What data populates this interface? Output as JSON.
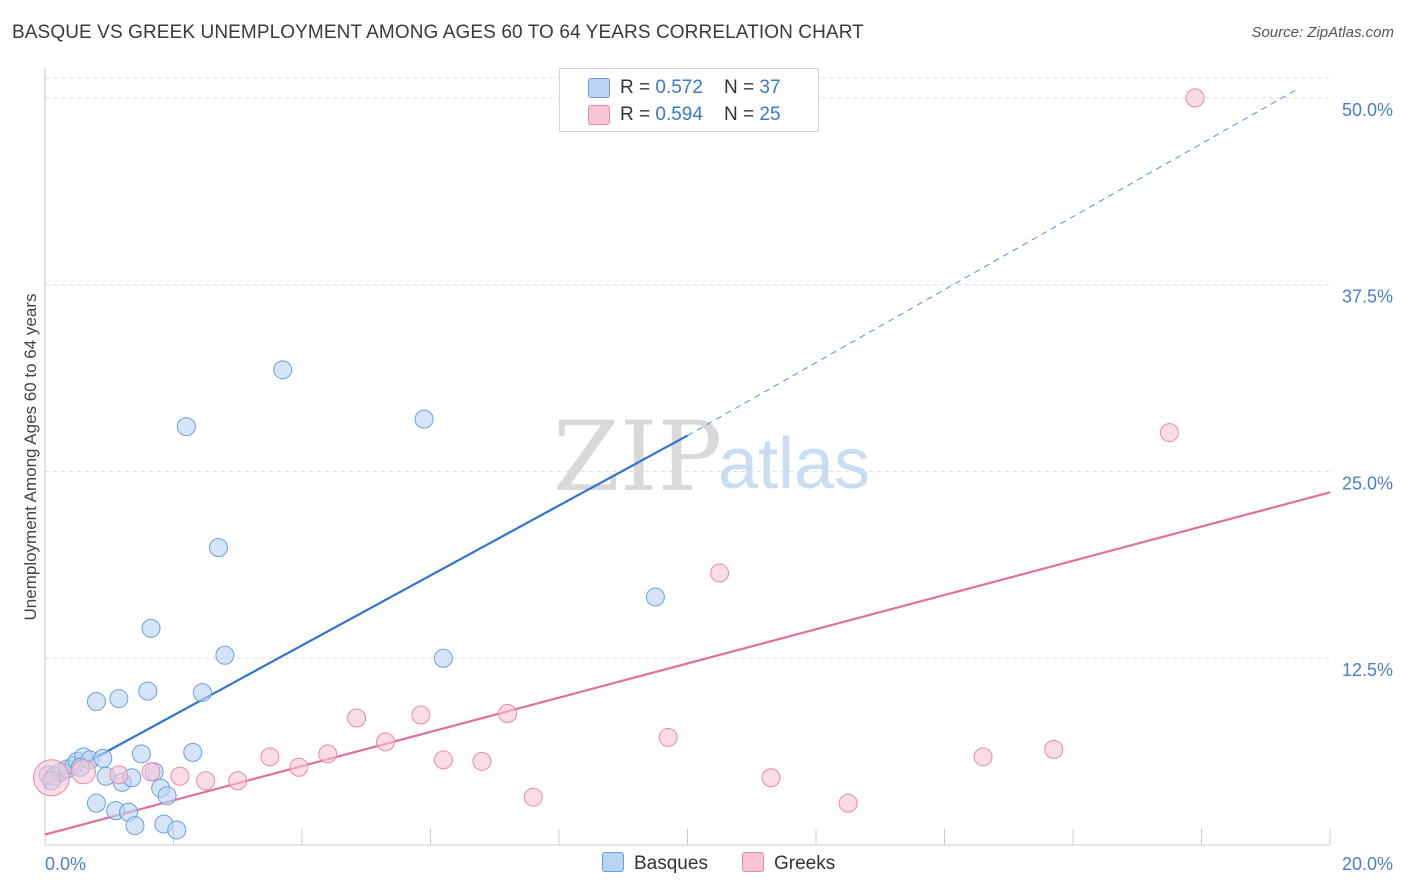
{
  "title": "BASQUE VS GREEK UNEMPLOYMENT AMONG AGES 60 TO 64 YEARS CORRELATION CHART",
  "source": "Source: ZipAtlas.com",
  "watermark": {
    "zip": "ZIP",
    "atlas": "atlas"
  },
  "legend_top": [
    {
      "r_label": "R = ",
      "r_value": "0.572",
      "n_label": "N = ",
      "n_value": "37"
    },
    {
      "r_label": "R = ",
      "r_value": "0.594",
      "n_label": "N = ",
      "n_value": "25"
    }
  ],
  "legend_bottom": {
    "basques": "Basques",
    "greeks": "Greeks"
  },
  "chart_data": {
    "type": "scatter",
    "title": "BASQUE VS GREEK UNEMPLOYMENT AMONG AGES 60 TO 64 YEARS CORRELATION CHART",
    "xlabel": "",
    "ylabel": "Unemployment Among Ages 60 to 64 years",
    "xlim": [
      0,
      20
    ],
    "ylim": [
      0,
      52
    ],
    "x_tick_labels": [
      {
        "value": 0,
        "label": "0.0%"
      },
      {
        "value": 20,
        "label": "20.0%"
      }
    ],
    "y_tick_labels": [
      {
        "value": 12.5,
        "label": "12.5%"
      },
      {
        "value": 25.0,
        "label": "25.0%"
      },
      {
        "value": 37.5,
        "label": "37.5%"
      },
      {
        "value": 50.0,
        "label": "50.0%"
      }
    ],
    "colors": {
      "basques_fill": "#b9d3f2",
      "basques_stroke": "#6a9fdc",
      "basques_line": "#2f74cf",
      "greeks_fill": "#f7c5d5",
      "greeks_stroke": "#e88aa8",
      "greeks_line": "#e0709a",
      "tick_label": "#4a7fc7",
      "grid": "#dddddd"
    },
    "series": [
      {
        "name": "Basques",
        "R": 0.572,
        "N": 37,
        "trend": {
          "x0": 0,
          "y0": 4.0,
          "x_solid_end": 10.0,
          "y_solid_end": 27.4,
          "x_end": 19.5,
          "y_end": 50.6
        },
        "points": [
          {
            "x": 0.05,
            "y": 4.7,
            "r": 9
          },
          {
            "x": 0.15,
            "y": 4.6,
            "r": 9
          },
          {
            "x": 0.25,
            "y": 4.9,
            "r": 9
          },
          {
            "x": 0.35,
            "y": 5.1,
            "r": 9
          },
          {
            "x": 0.45,
            "y": 5.3,
            "r": 9
          },
          {
            "x": 0.5,
            "y": 5.6,
            "r": 9
          },
          {
            "x": 0.6,
            "y": 5.9,
            "r": 9
          },
          {
            "x": 0.7,
            "y": 5.7,
            "r": 9
          },
          {
            "x": 0.8,
            "y": 9.6,
            "r": 9
          },
          {
            "x": 0.9,
            "y": 5.8,
            "r": 9
          },
          {
            "x": 0.95,
            "y": 4.6,
            "r": 9
          },
          {
            "x": 1.15,
            "y": 9.8,
            "r": 9
          },
          {
            "x": 1.2,
            "y": 4.2,
            "r": 9
          },
          {
            "x": 0.8,
            "y": 2.8,
            "r": 9
          },
          {
            "x": 1.1,
            "y": 2.3,
            "r": 9
          },
          {
            "x": 1.3,
            "y": 2.2,
            "r": 9
          },
          {
            "x": 1.4,
            "y": 1.3,
            "r": 9
          },
          {
            "x": 1.5,
            "y": 6.1,
            "r": 9
          },
          {
            "x": 1.6,
            "y": 10.3,
            "r": 9
          },
          {
            "x": 1.65,
            "y": 14.5,
            "r": 9
          },
          {
            "x": 1.7,
            "y": 4.9,
            "r": 9
          },
          {
            "x": 1.8,
            "y": 3.8,
            "r": 9
          },
          {
            "x": 1.9,
            "y": 3.3,
            "r": 9
          },
          {
            "x": 1.85,
            "y": 1.4,
            "r": 9
          },
          {
            "x": 2.05,
            "y": 1.0,
            "r": 9
          },
          {
            "x": 2.2,
            "y": 28.0,
            "r": 9
          },
          {
            "x": 2.3,
            "y": 6.2,
            "r": 9
          },
          {
            "x": 2.45,
            "y": 10.2,
            "r": 9
          },
          {
            "x": 2.7,
            "y": 19.9,
            "r": 9
          },
          {
            "x": 2.8,
            "y": 12.7,
            "r": 9
          },
          {
            "x": 3.7,
            "y": 31.8,
            "r": 9
          },
          {
            "x": 5.9,
            "y": 28.5,
            "r": 9
          },
          {
            "x": 6.2,
            "y": 12.5,
            "r": 9
          },
          {
            "x": 9.5,
            "y": 16.6,
            "r": 9
          },
          {
            "x": 0.1,
            "y": 4.3,
            "r": 9
          },
          {
            "x": 1.35,
            "y": 4.5,
            "r": 9
          },
          {
            "x": 0.55,
            "y": 5.2,
            "r": 9
          }
        ]
      },
      {
        "name": "Greeks",
        "R": 0.594,
        "N": 25,
        "trend": {
          "x0": 0,
          "y0": 0.7,
          "x_end": 20,
          "y_end": 23.6
        },
        "points": [
          {
            "x": 0.1,
            "y": 4.5,
            "r": 18
          },
          {
            "x": 0.6,
            "y": 4.9,
            "r": 12
          },
          {
            "x": 1.15,
            "y": 4.7,
            "r": 9
          },
          {
            "x": 1.65,
            "y": 4.9,
            "r": 9
          },
          {
            "x": 2.1,
            "y": 4.6,
            "r": 9
          },
          {
            "x": 2.5,
            "y": 4.3,
            "r": 9
          },
          {
            "x": 3.0,
            "y": 4.3,
            "r": 9
          },
          {
            "x": 3.5,
            "y": 5.9,
            "r": 9
          },
          {
            "x": 3.95,
            "y": 5.2,
            "r": 9
          },
          {
            "x": 4.4,
            "y": 6.1,
            "r": 9
          },
          {
            "x": 4.85,
            "y": 8.5,
            "r": 9
          },
          {
            "x": 5.3,
            "y": 6.9,
            "r": 9
          },
          {
            "x": 5.85,
            "y": 8.7,
            "r": 9
          },
          {
            "x": 6.2,
            "y": 5.7,
            "r": 9
          },
          {
            "x": 6.8,
            "y": 5.6,
            "r": 9
          },
          {
            "x": 7.2,
            "y": 8.8,
            "r": 9
          },
          {
            "x": 7.6,
            "y": 3.2,
            "r": 9
          },
          {
            "x": 9.7,
            "y": 7.2,
            "r": 9
          },
          {
            "x": 10.5,
            "y": 18.2,
            "r": 9
          },
          {
            "x": 11.3,
            "y": 4.5,
            "r": 9
          },
          {
            "x": 12.5,
            "y": 2.8,
            "r": 9
          },
          {
            "x": 14.6,
            "y": 5.9,
            "r": 9
          },
          {
            "x": 15.7,
            "y": 6.4,
            "r": 9
          },
          {
            "x": 17.5,
            "y": 27.6,
            "r": 9
          },
          {
            "x": 17.9,
            "y": 50.0,
            "r": 9
          }
        ]
      }
    ]
  }
}
